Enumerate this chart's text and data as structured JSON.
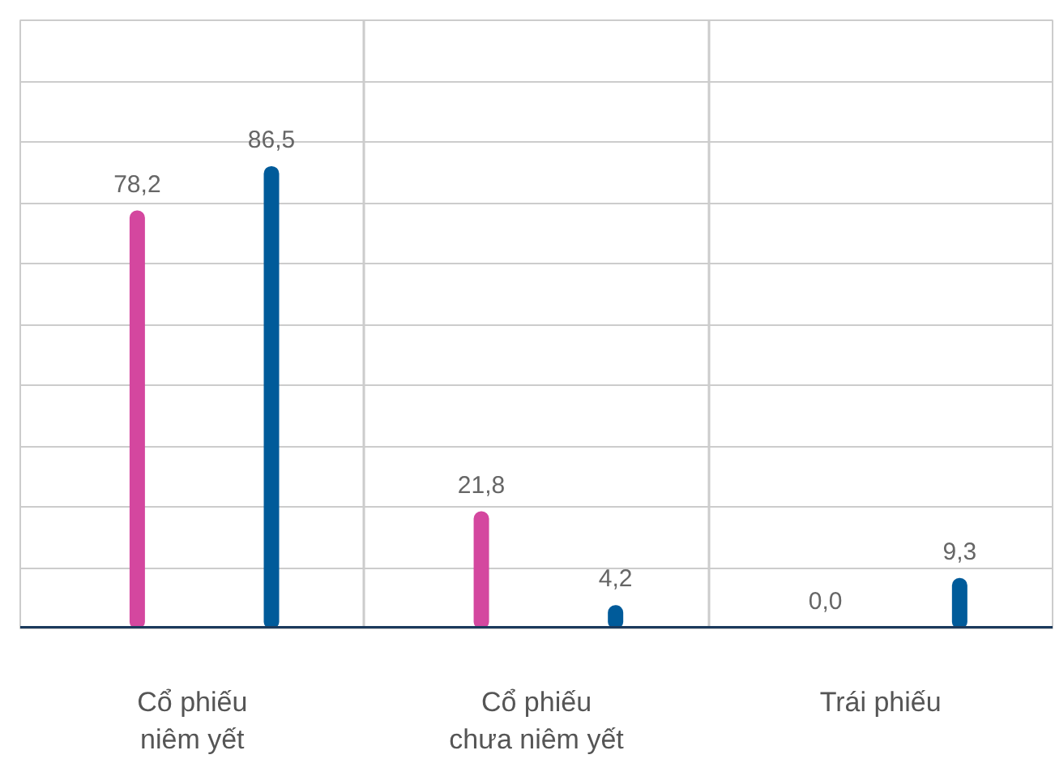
{
  "chart_data": {
    "type": "bar",
    "categories": [
      "Cổ phiếu\nniêm yết",
      "Cổ phiếu\nchưa niêm yết",
      "Trái phiếu"
    ],
    "series": [
      {
        "color": "#d4479f",
        "values": [
          78.2,
          21.8,
          0.0
        ],
        "value_labels": [
          "78,2",
          "21,8",
          "0,0"
        ]
      },
      {
        "color": "#005b9a",
        "values": [
          86.5,
          4.2,
          9.3
        ],
        "value_labels": [
          "86,5",
          "4,2",
          "9,3"
        ]
      }
    ],
    "ylim": [
      0,
      114
    ],
    "yticks": [
      {
        "value": 0,
        "label": null
      },
      {
        "value": 11.4,
        "label": null
      },
      {
        "value": 22.8,
        "label": null
      },
      {
        "value": 34.2,
        "label": null
      },
      {
        "value": 45.6,
        "label": null
      },
      {
        "value": 57,
        "label": null
      },
      {
        "value": 68.4,
        "label": null
      },
      {
        "value": 79.8,
        "label": null
      },
      {
        "value": 91.2,
        "label": null
      },
      {
        "value": 102.6,
        "label": null
      },
      {
        "value": 114,
        "label": null
      }
    ],
    "tick_labels": "x",
    "grid": true
  }
}
